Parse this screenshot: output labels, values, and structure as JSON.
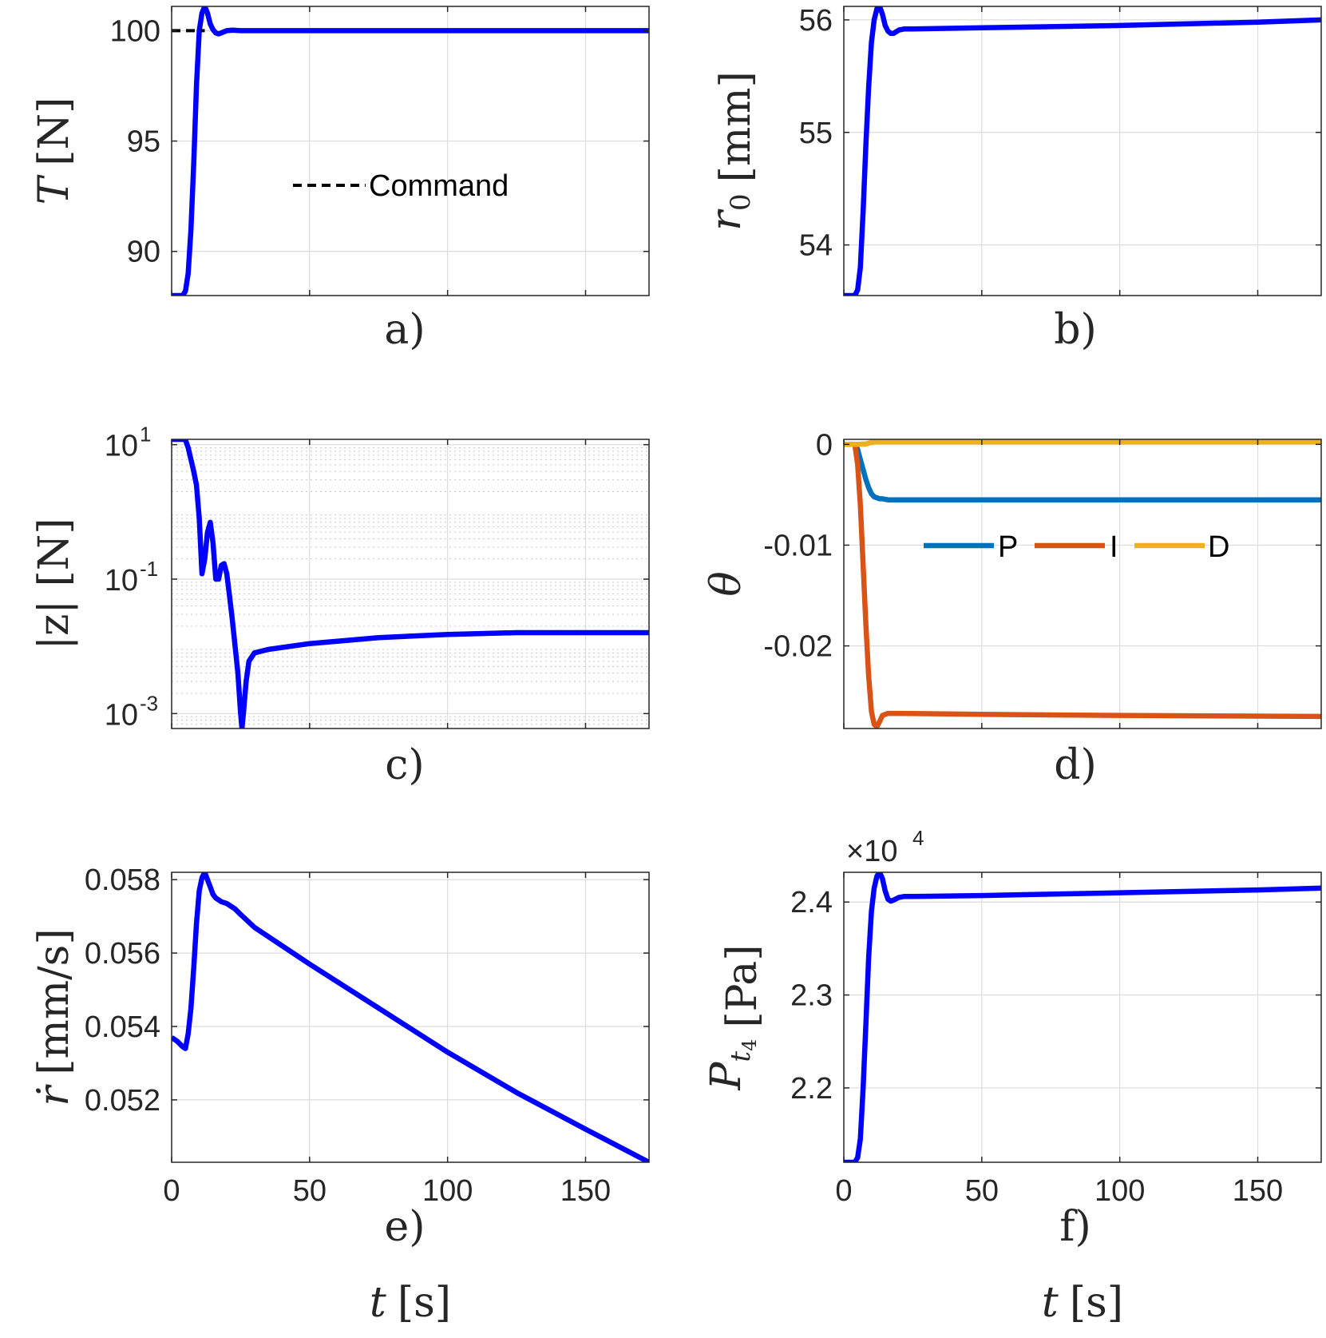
{
  "colors": {
    "main_line": "#0000ff",
    "command": "#000000",
    "P": "#0072bd",
    "I": "#d95319",
    "D": "#edb120"
  },
  "chart_data": [
    {
      "id": "a",
      "type": "line",
      "caption": "a)",
      "ylabel_symbol": "T",
      "ylabel_unit": "[N]",
      "xlabel": "",
      "xlim": [
        0,
        173
      ],
      "ylim": [
        88,
        101.1
      ],
      "x_ticks": [
        0,
        50,
        100,
        150
      ],
      "x_tick_labels_visible": false,
      "y_ticks": [
        90,
        95,
        100
      ],
      "y_tick_labels": [
        "90",
        "95",
        "100"
      ],
      "grid": true,
      "legend": {
        "entries": [
          "Command"
        ],
        "placement": "center"
      },
      "series": [
        {
          "name": "T",
          "color_key": "main_line",
          "style": "solid",
          "x": [
            0,
            2,
            4,
            5,
            6,
            7,
            8,
            9,
            10,
            11,
            12,
            13,
            14,
            15,
            16,
            17,
            18,
            20,
            22,
            25,
            173
          ],
          "y": [
            88,
            88,
            88,
            88.2,
            89,
            91,
            94,
            97.5,
            100,
            100.8,
            101.1,
            100.8,
            100.3,
            100.05,
            99.9,
            99.85,
            99.9,
            100,
            100.02,
            100,
            100
          ]
        },
        {
          "name": "Command",
          "color_key": "command",
          "style": "dashed",
          "x": [
            0,
            12
          ],
          "y": [
            100,
            100
          ]
        }
      ]
    },
    {
      "id": "b",
      "type": "line",
      "caption": "b)",
      "ylabel_symbol": "r",
      "ylabel_subscript": "0",
      "ylabel_unit": "[mm]",
      "xlabel": "",
      "xlim": [
        0,
        173
      ],
      "ylim": [
        53.55,
        56.12
      ],
      "x_ticks": [
        0,
        50,
        100,
        150
      ],
      "x_tick_labels_visible": false,
      "y_ticks": [
        54,
        55,
        56
      ],
      "y_tick_labels": [
        "54",
        "55",
        "56"
      ],
      "grid": true,
      "series": [
        {
          "name": "r0",
          "color_key": "main_line",
          "style": "solid",
          "x": [
            0,
            2,
            4,
            5,
            6,
            7,
            8,
            9,
            10,
            11,
            12,
            13,
            14,
            15,
            16,
            17,
            18,
            20,
            22,
            25,
            50,
            100,
            150,
            173
          ],
          "y": [
            53.55,
            53.55,
            53.55,
            53.6,
            53.8,
            54.3,
            54.9,
            55.4,
            55.8,
            56.0,
            56.1,
            56.12,
            56.05,
            55.95,
            55.9,
            55.88,
            55.88,
            55.91,
            55.92,
            55.92,
            55.93,
            55.95,
            55.98,
            56.0
          ]
        }
      ]
    },
    {
      "id": "c",
      "type": "line",
      "caption": "c)",
      "ylabel_text": "|z| [N]",
      "xlabel": "",
      "yscale": "log",
      "xlim": [
        0,
        173
      ],
      "ylim": [
        0.0006,
        12
      ],
      "x_ticks": [
        0,
        50,
        100,
        150
      ],
      "x_tick_labels_visible": false,
      "y_ticks": [
        0.001,
        0.1,
        10
      ],
      "y_tick_labels": [
        {
          "base": "10",
          "exp": "-3"
        },
        {
          "base": "10",
          "exp": "-1"
        },
        {
          "base": "10",
          "exp": "1"
        }
      ],
      "grid": true,
      "minor_grid": true,
      "series": [
        {
          "name": "|z|",
          "color_key": "main_line",
          "style": "solid",
          "x": [
            0,
            2,
            4,
            5,
            6,
            7,
            8,
            9,
            10,
            11,
            12,
            13,
            14,
            15,
            16,
            17,
            18,
            19,
            20,
            21,
            22,
            23,
            24,
            25,
            25.5,
            26,
            27,
            28,
            30,
            35,
            50,
            75,
            100,
            125,
            150,
            173
          ],
          "y": [
            12,
            12,
            12,
            11.8,
            9,
            6,
            4,
            2.5,
            0.8,
            0.12,
            0.2,
            0.5,
            0.7,
            0.35,
            0.1,
            0.1,
            0.16,
            0.17,
            0.12,
            0.055,
            0.025,
            0.01,
            0.004,
            0.001,
            0.0006,
            0.001,
            0.003,
            0.006,
            0.008,
            0.009,
            0.011,
            0.0135,
            0.015,
            0.016,
            0.016,
            0.016
          ]
        }
      ]
    },
    {
      "id": "d",
      "type": "line",
      "caption": "d)",
      "ylabel_symbol": "θ",
      "xlabel": "",
      "xlim": [
        0,
        173
      ],
      "ylim": [
        -0.0282,
        0.0005
      ],
      "x_ticks": [
        0,
        50,
        100,
        150
      ],
      "x_tick_labels_visible": false,
      "y_ticks": [
        -0.02,
        -0.01,
        0
      ],
      "y_tick_labels": [
        "-0.02",
        "-0.01",
        "0"
      ],
      "grid": true,
      "legend": {
        "entries": [
          "P",
          "I",
          "D"
        ],
        "placement": "center"
      },
      "series": [
        {
          "name": "P",
          "color_key": "P",
          "style": "solid",
          "x": [
            0,
            2,
            4,
            5,
            6,
            7,
            8,
            9,
            10,
            11,
            12,
            13,
            14,
            16,
            20,
            173
          ],
          "y": [
            0,
            0,
            0,
            -0.0005,
            -0.0015,
            -0.0025,
            -0.0035,
            -0.0043,
            -0.0049,
            -0.0052,
            -0.0053,
            -0.0054,
            -0.0054,
            -0.0055,
            -0.0055,
            -0.0055
          ]
        },
        {
          "name": "I",
          "color_key": "I",
          "style": "solid",
          "x": [
            0,
            2,
            4,
            5,
            6,
            7,
            8,
            9,
            10,
            11,
            12,
            13,
            14,
            15,
            16,
            17,
            20,
            50,
            100,
            173
          ],
          "y": [
            0,
            0,
            0,
            -0.002,
            -0.006,
            -0.012,
            -0.018,
            -0.023,
            -0.0265,
            -0.0278,
            -0.028,
            -0.0275,
            -0.0269,
            -0.0268,
            -0.0267,
            -0.0267,
            -0.0267,
            -0.0268,
            -0.0269,
            -0.027
          ]
        },
        {
          "name": "D",
          "color_key": "D",
          "style": "solid",
          "x": [
            0,
            5,
            8,
            10,
            12,
            15,
            173
          ],
          "y": [
            0,
            0,
            5e-05,
            0.0002,
            0.00025,
            0.00025,
            0.00025
          ]
        }
      ]
    },
    {
      "id": "e",
      "type": "line",
      "caption": "e)",
      "ylabel_symbol": "ṙ",
      "ylabel_unit": "[mm/s]",
      "xlabel_symbol": "t",
      "xlabel_unit": "[s]",
      "xlim": [
        0,
        173
      ],
      "ylim": [
        0.0503,
        0.0582
      ],
      "x_ticks": [
        0,
        50,
        100,
        150
      ],
      "x_tick_labels": [
        "0",
        "50",
        "100",
        "150"
      ],
      "x_tick_labels_visible": true,
      "y_ticks": [
        0.052,
        0.054,
        0.056,
        0.058
      ],
      "y_tick_labels": [
        "0.052",
        "0.054",
        "0.056",
        "0.058"
      ],
      "grid": true,
      "series": [
        {
          "name": "rdot",
          "color_key": "main_line",
          "style": "solid",
          "x": [
            0,
            2,
            4,
            5,
            6,
            7,
            8,
            9,
            10,
            11,
            12,
            13,
            14,
            15,
            16,
            17,
            18,
            20,
            23,
            25,
            30,
            50,
            75,
            100,
            125,
            150,
            173
          ],
          "y": [
            0.0537,
            0.0536,
            0.05345,
            0.0534,
            0.0538,
            0.0545,
            0.0556,
            0.0568,
            0.0577,
            0.05805,
            0.0582,
            0.058,
            0.0578,
            0.0576,
            0.0575,
            0.05745,
            0.0574,
            0.05735,
            0.0572,
            0.05705,
            0.0567,
            0.0557,
            0.0545,
            0.0533,
            0.0522,
            0.0512,
            0.0503
          ]
        }
      ]
    },
    {
      "id": "f",
      "type": "line",
      "caption": "f)",
      "ylabel_symbol": "P",
      "ylabel_subscript": "t",
      "ylabel_subsubscript": "4",
      "ylabel_unit": "[Pa]",
      "xlabel_symbol": "t",
      "xlabel_unit": "[s]",
      "xlim": [
        0,
        173
      ],
      "ylim": [
        2.12,
        2.432
      ],
      "y_multiplier": {
        "prefix": "×10",
        "exp": "4"
      },
      "x_ticks": [
        0,
        50,
        100,
        150
      ],
      "x_tick_labels": [
        "0",
        "50",
        "100",
        "150"
      ],
      "x_tick_labels_visible": true,
      "y_ticks": [
        2.2,
        2.3,
        2.4
      ],
      "y_tick_labels": [
        "2.2",
        "2.3",
        "2.4"
      ],
      "grid": true,
      "series": [
        {
          "name": "Pt4",
          "color_key": "main_line",
          "style": "solid",
          "x": [
            0,
            2,
            4,
            5,
            6,
            7,
            8,
            9,
            10,
            11,
            12,
            13,
            14,
            15,
            16,
            17,
            18,
            20,
            22,
            25,
            50,
            100,
            150,
            173
          ],
          "y": [
            2.12,
            2.12,
            2.12,
            2.125,
            2.145,
            2.2,
            2.27,
            2.34,
            2.39,
            2.415,
            2.428,
            2.432,
            2.425,
            2.412,
            2.403,
            2.401,
            2.402,
            2.405,
            2.406,
            2.406,
            2.407,
            2.41,
            2.413,
            2.415
          ]
        }
      ]
    }
  ]
}
